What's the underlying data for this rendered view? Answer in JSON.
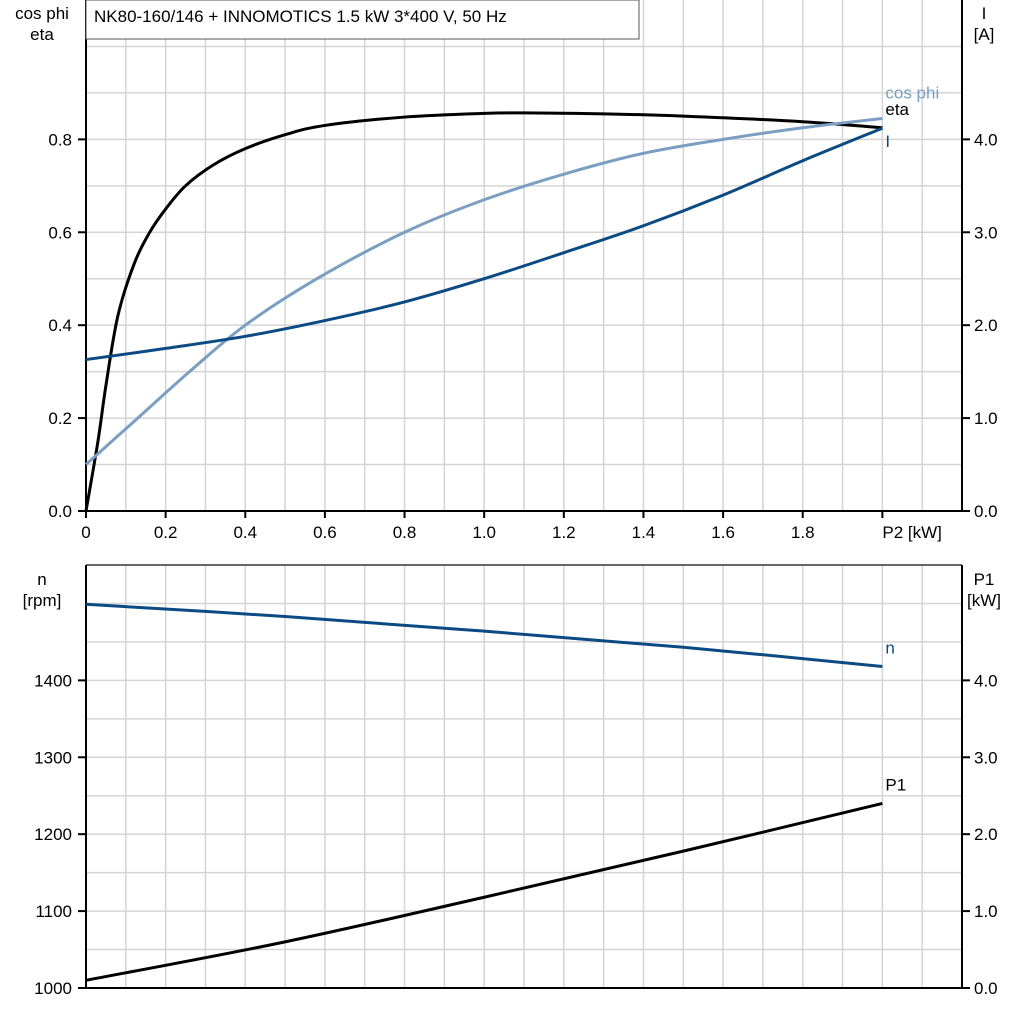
{
  "chart_data": [
    {
      "type": "line",
      "title": "NK80-160/146 + INNOMOTICS   1.5 kW   3*400 V, 50 Hz",
      "xlabel": "P2 [kW]",
      "ylabel_lines": [
        "cos phi",
        "eta"
      ],
      "y2label_lines": [
        "I",
        "[A]"
      ],
      "xlim": [
        0,
        2.2
      ],
      "ylim": [
        0,
        1.1
      ],
      "y2lim": [
        0,
        5.5
      ],
      "grid": true,
      "xticks": [
        "0",
        "0.2",
        "0.4",
        "0.6",
        "0.8",
        "1.0",
        "1.2",
        "1.4",
        "1.6",
        "1.8"
      ],
      "yticks": [
        "0.0",
        "0.2",
        "0.4",
        "0.6",
        "0.8"
      ],
      "y2ticks": [
        "0.0",
        "1.0",
        "2.0",
        "3.0",
        "4.0"
      ],
      "series": [
        {
          "name": "eta",
          "axis": "left",
          "color": "#000000",
          "x": [
            0,
            0.03,
            0.05,
            0.08,
            0.12,
            0.16,
            0.2,
            0.25,
            0.32,
            0.4,
            0.5,
            0.6,
            0.8,
            1.0,
            1.1,
            1.3,
            1.5,
            1.8,
            2.0
          ],
          "y": [
            0,
            0.15,
            0.27,
            0.42,
            0.53,
            0.6,
            0.65,
            0.7,
            0.745,
            0.78,
            0.81,
            0.83,
            0.848,
            0.856,
            0.857,
            0.855,
            0.85,
            0.838,
            0.825
          ]
        },
        {
          "name": "cos phi",
          "axis": "left",
          "color": "#7a9fc2",
          "x": [
            0,
            0.13,
            0.26,
            0.4,
            0.58,
            0.8,
            1.0,
            1.2,
            1.4,
            1.6,
            1.8,
            2.0
          ],
          "y": [
            0.1,
            0.2,
            0.3,
            0.4,
            0.5,
            0.6,
            0.67,
            0.725,
            0.77,
            0.8,
            0.825,
            0.845
          ]
        },
        {
          "name": "I",
          "axis": "right",
          "color": "#0b4a82",
          "x": [
            0,
            0.2,
            0.4,
            0.6,
            0.8,
            1.0,
            1.2,
            1.4,
            1.6,
            1.8,
            2.0
          ],
          "y": [
            1.63,
            1.75,
            1.88,
            2.05,
            2.25,
            2.5,
            2.78,
            3.07,
            3.4,
            3.77,
            4.12
          ]
        }
      ]
    },
    {
      "type": "line",
      "ylabel_lines": [
        "n",
        "[rpm]"
      ],
      "y2label_lines": [
        "P1",
        "[kW]"
      ],
      "xlim": [
        0,
        2.2
      ],
      "ylim": [
        1000,
        1550
      ],
      "y2lim": [
        0,
        5.5
      ],
      "grid": true,
      "yticks": [
        "1000",
        "1100",
        "1200",
        "1300",
        "1400"
      ],
      "y2ticks": [
        "0.0",
        "1.0",
        "2.0",
        "3.0",
        "4.0"
      ],
      "series": [
        {
          "name": "n",
          "axis": "left",
          "color": "#0b4a82",
          "x": [
            0,
            0.5,
            1.0,
            1.5,
            2.0
          ],
          "y": [
            1499,
            1483,
            1464,
            1443,
            1418
          ]
        },
        {
          "name": "P1",
          "axis": "right",
          "color": "#000000",
          "x": [
            0,
            0.5,
            1.0,
            1.5,
            2.0
          ],
          "y": [
            0.1,
            0.6,
            1.18,
            1.78,
            2.4
          ]
        }
      ]
    }
  ]
}
